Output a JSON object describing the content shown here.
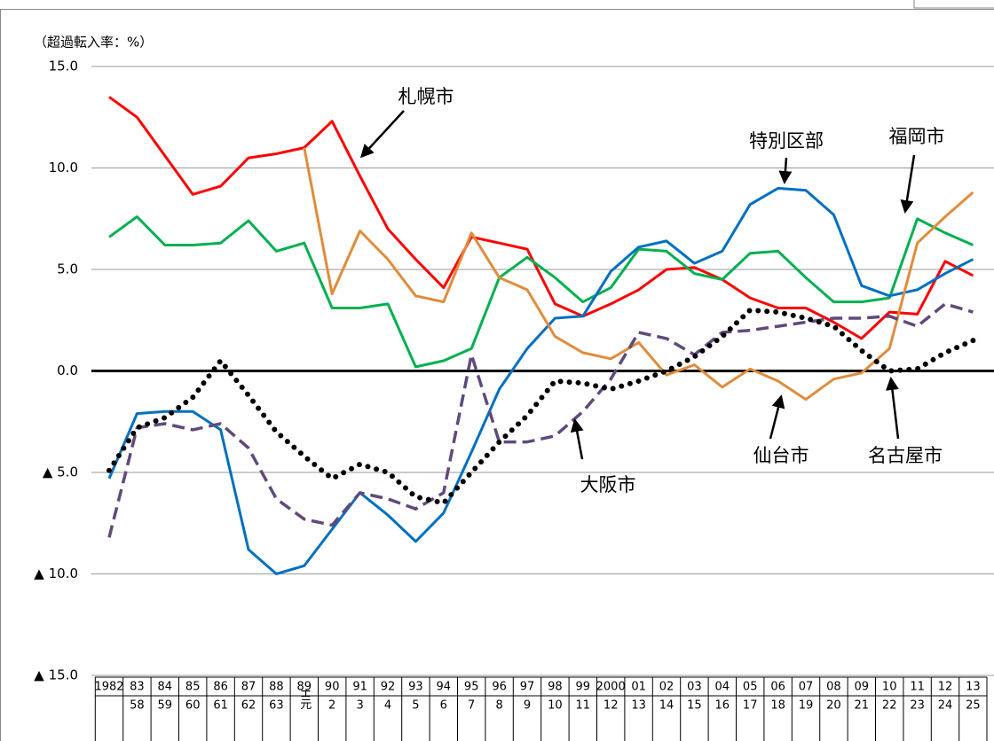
{
  "chart_data": {
    "type": "line",
    "y_label": "（超過転入率：%）",
    "categories": [
      "1982",
      "83",
      "84",
      "85",
      "86",
      "87",
      "88",
      "89",
      "90",
      "91",
      "92",
      "93",
      "94",
      "95",
      "96",
      "97",
      "98",
      "99",
      "2000",
      "01",
      "02",
      "03",
      "04",
      "05",
      "06",
      "07",
      "08",
      "09",
      "10",
      "11",
      "12",
      "13"
    ],
    "era_labels": [
      null,
      "58",
      "59",
      "60",
      "61",
      "62",
      "63",
      "H元",
      "2",
      "3",
      "4",
      "5",
      "6",
      "7",
      "8",
      "9",
      "10",
      "11",
      "12",
      "13",
      "14",
      "15",
      "16",
      "17",
      "18",
      "19",
      "20",
      "21",
      "22",
      "23",
      "24",
      "25"
    ],
    "ylim": [
      -15,
      15
    ],
    "yticks": [
      {
        "value": -15,
        "label": "▲ 15.0"
      },
      {
        "value": -10,
        "label": "▲ 10.0"
      },
      {
        "value": -5,
        "label": "▲ 5.0"
      },
      {
        "value": 0,
        "label": "0.0"
      },
      {
        "value": 5,
        "label": "5.0"
      },
      {
        "value": 10,
        "label": "10.0"
      },
      {
        "value": 15,
        "label": "15.0"
      }
    ],
    "grid": true,
    "series": [
      {
        "name": "札幌市",
        "color": "#ff0000",
        "style": "solid",
        "values": [
          13.5,
          12.5,
          10.6,
          8.7,
          9.1,
          10.5,
          10.7,
          11.0,
          12.3,
          9.6,
          7.0,
          5.5,
          4.1,
          6.6,
          6.3,
          6.0,
          3.3,
          2.7,
          3.3,
          4.0,
          5.0,
          5.1,
          4.5,
          3.6,
          3.1,
          3.1,
          2.4,
          1.6,
          2.9,
          2.8,
          5.4,
          4.7
        ]
      },
      {
        "name": "福岡市",
        "color": "#00b050",
        "style": "solid",
        "values": [
          6.6,
          7.6,
          6.2,
          6.2,
          6.3,
          7.4,
          5.9,
          6.3,
          3.1,
          3.1,
          3.3,
          0.2,
          0.5,
          1.1,
          4.6,
          5.6,
          4.6,
          3.4,
          4.1,
          6.0,
          5.9,
          4.8,
          4.5,
          5.8,
          5.9,
          4.6,
          3.4,
          3.4,
          3.6,
          7.5,
          6.8,
          6.2
        ]
      },
      {
        "name": "特別区部",
        "color": "#0070c0",
        "style": "solid",
        "values": [
          -5.3,
          -2.1,
          -2.0,
          -2.0,
          -2.9,
          -8.8,
          -10.0,
          -9.6,
          -7.8,
          -6.0,
          -7.1,
          -8.4,
          -7.0,
          -4.0,
          -0.9,
          1.1,
          2.6,
          2.7,
          4.9,
          6.1,
          6.4,
          5.3,
          5.9,
          8.2,
          9.0,
          8.9,
          7.7,
          4.2,
          3.7,
          4.0,
          4.8,
          5.5
        ]
      },
      {
        "name": "仙台市",
        "color": "#e08c3c",
        "style": "solid",
        "values": [
          null,
          null,
          null,
          null,
          null,
          null,
          null,
          11.0,
          3.8,
          6.9,
          5.5,
          3.7,
          3.4,
          6.8,
          4.6,
          4.0,
          1.7,
          0.9,
          0.6,
          1.4,
          -0.2,
          0.3,
          -0.8,
          0.1,
          -0.5,
          -1.4,
          -0.4,
          -0.1,
          1.1,
          6.3,
          7.6,
          8.8
        ]
      },
      {
        "name": "大阪市",
        "color": "#604a7b",
        "style": "dashed",
        "values": [
          -8.2,
          -2.8,
          -2.6,
          -2.9,
          -2.6,
          -3.8,
          -6.3,
          -7.3,
          -7.6,
          -6.0,
          -6.3,
          -6.8,
          -6.0,
          0.8,
          -3.5,
          -3.5,
          -3.2,
          -2.0,
          -0.4,
          1.9,
          1.6,
          0.8,
          1.9,
          2.0,
          2.2,
          2.4,
          2.6,
          2.6,
          2.7,
          2.2,
          3.3,
          2.9
        ]
      },
      {
        "name": "名古屋市",
        "color": "#000000",
        "style": "dotted",
        "values": [
          -4.9,
          -2.8,
          -2.3,
          -1.3,
          0.5,
          -1.2,
          -3.0,
          -4.2,
          -5.3,
          -4.6,
          -5.0,
          -6.2,
          -6.5,
          -5.0,
          -3.5,
          -2.2,
          -0.5,
          -0.6,
          -0.9,
          -0.5,
          0.0,
          0.7,
          1.7,
          3.0,
          2.9,
          2.6,
          2.2,
          1.0,
          0.0,
          0.1,
          0.9,
          1.5
        ]
      }
    ]
  }
}
